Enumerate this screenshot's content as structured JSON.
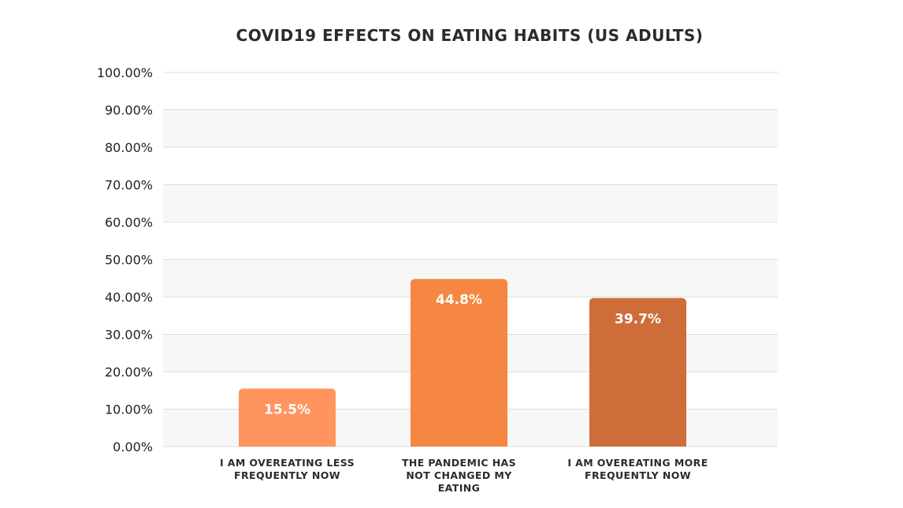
{
  "chart_data": {
    "type": "bar",
    "title": "COVID19 EFFECTS ON EATING HABITS (US ADULTS)",
    "xlabel": "",
    "ylabel": "",
    "ylim": [
      0,
      100
    ],
    "yticks": [
      "0.00%",
      "10.00%",
      "20.00%",
      "30.00%",
      "40.00%",
      "50.00%",
      "60.00%",
      "70.00%",
      "80.00%",
      "90.00%",
      "100.00%"
    ],
    "categories": [
      [
        "I AM OVEREATING LESS",
        "FREQUENTLY NOW"
      ],
      [
        "THE PANDEMIC HAS",
        "NOT CHANGED MY",
        "EATING"
      ],
      [
        "I AM OVEREATING MORE",
        "FREQUENTLY NOW"
      ]
    ],
    "values": [
      15.5,
      44.8,
      39.7
    ],
    "data_labels": [
      "15.5%",
      "44.8%",
      "39.7%"
    ],
    "colors": [
      "#ff945e",
      "#f58742",
      "#cf6d3a"
    ],
    "grid": true,
    "legend": "none"
  }
}
